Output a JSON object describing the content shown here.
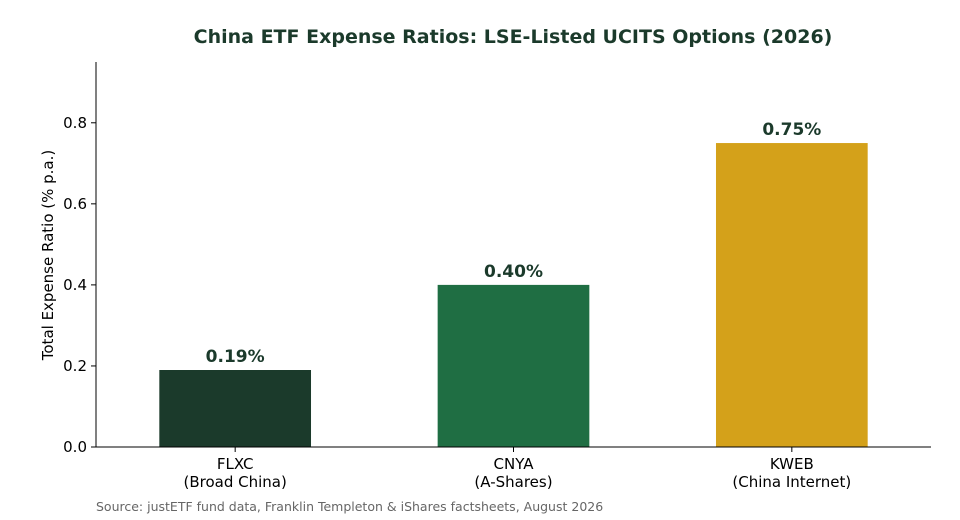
{
  "chart_data": {
    "type": "bar",
    "title": "China ETF Expense Ratios: LSE-Listed UCITS Options (2026)",
    "xlabel": "",
    "ylabel": "Total Expense Ratio (% p.a.)",
    "ylim": [
      0,
      0.95
    ],
    "yticks": [
      0.0,
      0.2,
      0.4,
      0.6,
      0.8
    ],
    "ytick_labels": [
      "0.0",
      "0.2",
      "0.4",
      "0.6",
      "0.8"
    ],
    "categories": [
      {
        "ticker": "FLXC",
        "desc": "(Broad China)"
      },
      {
        "ticker": "CNYA",
        "desc": "(A-Shares)"
      },
      {
        "ticker": "KWEB",
        "desc": "(China Internet)"
      }
    ],
    "values": [
      0.19,
      0.4,
      0.75
    ],
    "data_labels": [
      "0.19%",
      "0.40%",
      "0.75%"
    ],
    "colors": [
      "#1b3a2b",
      "#1f6e43",
      "#d4a11a"
    ],
    "grid": false,
    "legend": "none"
  },
  "source": "Source: justETF fund data, Franklin Templeton & iShares factsheets, August 2026"
}
